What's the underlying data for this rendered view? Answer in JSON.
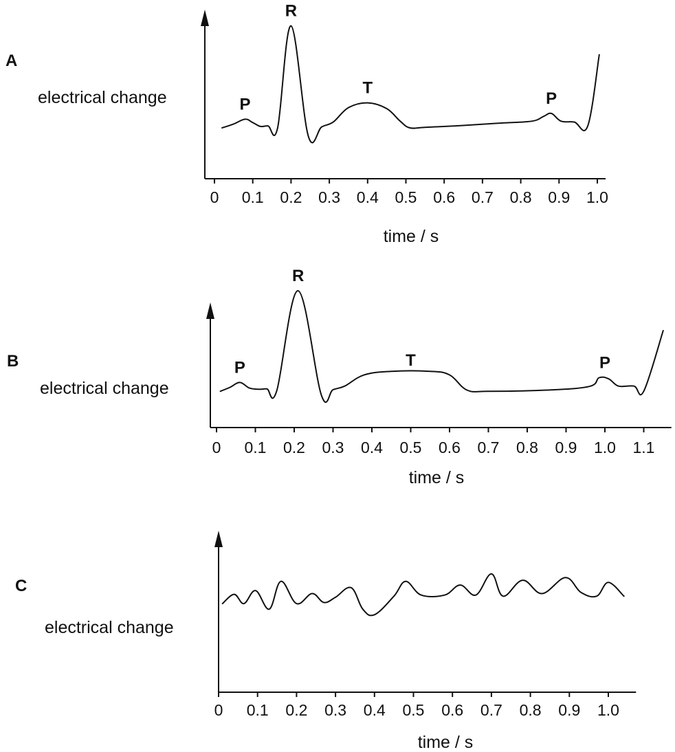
{
  "chart_data": [
    {
      "panel": "A",
      "type": "line",
      "ylabel": "electrical change",
      "xlabel": "time / s",
      "x_ticks": [
        "0",
        "0.1",
        "0.2",
        "0.3",
        "0.4",
        "0.5",
        "0.6",
        "0.7",
        "0.8",
        "0.9",
        "1.0"
      ],
      "xlim": [
        0,
        1.0
      ],
      "y_ticks": "none",
      "annotations": [
        {
          "text": "P",
          "x": 0.08
        },
        {
          "text": "R",
          "x": 0.2
        },
        {
          "text": "T",
          "x": 0.4
        },
        {
          "text": "P",
          "x": 0.88
        }
      ],
      "series": [
        {
          "x": [
            0.02,
            0.05,
            0.08,
            0.1,
            0.12,
            0.14,
            0.165,
            0.2,
            0.245,
            0.28,
            0.31,
            0.35,
            0.4,
            0.45,
            0.485,
            0.51,
            0.55,
            0.65,
            0.75,
            0.83,
            0.86,
            0.88,
            0.905,
            0.94,
            0.975,
            1.005
          ],
          "y": [
            0.2,
            0.28,
            0.38,
            0.31,
            0.23,
            0.24,
            0.2,
            2.32,
            0.03,
            0.22,
            0.32,
            0.62,
            0.72,
            0.6,
            0.34,
            0.2,
            0.21,
            0.25,
            0.3,
            0.34,
            0.44,
            0.5,
            0.34,
            0.32,
            0.24,
            1.72
          ]
        }
      ]
    },
    {
      "panel": "B",
      "type": "line",
      "ylabel": "electrical change",
      "xlabel": "time / s",
      "x_ticks": [
        "0",
        "0.1",
        "0.2",
        "0.3",
        "0.4",
        "0.5",
        "0.6",
        "0.7",
        "0.8",
        "0.9",
        "1.0",
        "1.1"
      ],
      "xlim": [
        0,
        1.15
      ],
      "y_ticks": "none",
      "annotations": [
        {
          "text": "P",
          "x": 0.06
        },
        {
          "text": "R",
          "x": 0.21
        },
        {
          "text": "T",
          "x": 0.5
        },
        {
          "text": "P",
          "x": 1.0
        }
      ],
      "series": [
        {
          "x": [
            0.01,
            0.035,
            0.06,
            0.085,
            0.11,
            0.13,
            0.155,
            0.21,
            0.27,
            0.3,
            0.33,
            0.38,
            0.45,
            0.55,
            0.6,
            0.645,
            0.7,
            0.85,
            0.96,
            0.985,
            1.01,
            1.035,
            1.075,
            1.1,
            1.15
          ],
          "y": [
            0.1,
            0.2,
            0.32,
            0.18,
            0.15,
            0.16,
            0.11,
            2.62,
            0.0,
            0.14,
            0.23,
            0.51,
            0.6,
            0.6,
            0.51,
            0.13,
            0.1,
            0.13,
            0.22,
            0.44,
            0.41,
            0.23,
            0.23,
            0.1,
            1.62
          ]
        }
      ]
    },
    {
      "panel": "C",
      "type": "line",
      "ylabel": "electrical change",
      "xlabel": "time / s",
      "x_ticks": [
        "0",
        "0.1",
        "0.2",
        "0.3",
        "0.4",
        "0.5",
        "0.6",
        "0.7",
        "0.8",
        "0.9",
        "1.0"
      ],
      "xlim": [
        0,
        1.05
      ],
      "y_ticks": "none",
      "series": [
        {
          "x": [
            0.01,
            0.04,
            0.065,
            0.095,
            0.13,
            0.16,
            0.2,
            0.24,
            0.27,
            0.3,
            0.34,
            0.37,
            0.4,
            0.45,
            0.48,
            0.52,
            0.58,
            0.62,
            0.66,
            0.7,
            0.73,
            0.78,
            0.83,
            0.89,
            0.93,
            0.97,
            1.0,
            1.04
          ],
          "y": [
            0.35,
            0.6,
            0.35,
            0.7,
            0.2,
            0.95,
            0.35,
            0.62,
            0.38,
            0.52,
            0.78,
            0.2,
            0.05,
            0.55,
            0.95,
            0.58,
            0.58,
            0.85,
            0.58,
            1.15,
            0.55,
            0.98,
            0.62,
            1.05,
            0.65,
            0.55,
            0.92,
            0.55
          ]
        }
      ]
    }
  ]
}
